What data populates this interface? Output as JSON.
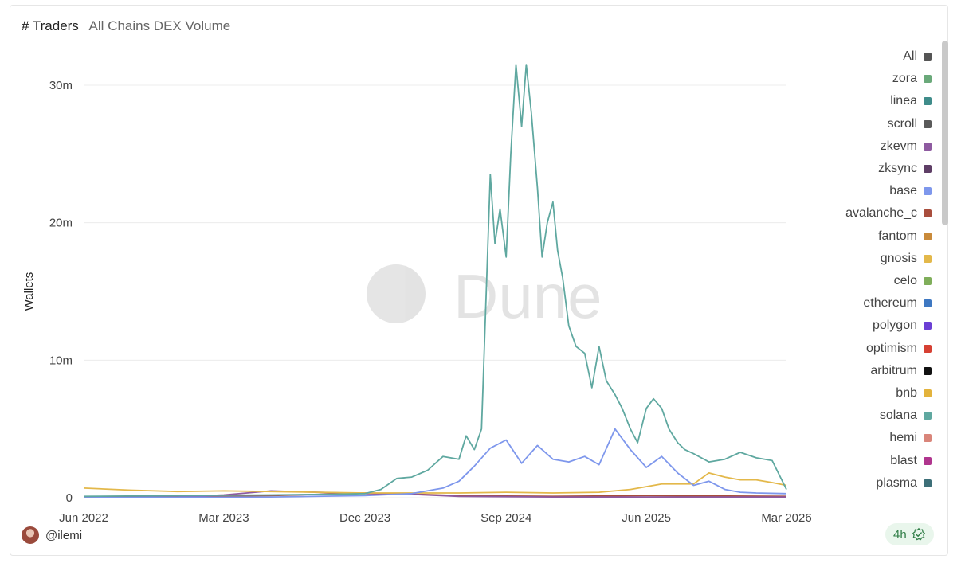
{
  "header": {
    "title": "# Traders",
    "subtitle": "All Chains DEX Volume"
  },
  "watermark": "Dune",
  "author": {
    "handle": "@ilemi"
  },
  "refresh_badge": {
    "label": "4h",
    "icon": "check-circle-icon"
  },
  "chart_data": {
    "type": "line",
    "title": "# Traders",
    "subtitle": "All Chains DEX Volume",
    "ylabel": "Wallets",
    "xlabel": "",
    "ylim": [
      0,
      30000000
    ],
    "yticks": [
      0,
      10000000,
      20000000,
      30000000
    ],
    "ytick_labels": [
      "0",
      "10m",
      "20m",
      "30m"
    ],
    "xlim": [
      "2022-06",
      "2026-03"
    ],
    "xticks": [
      "Jun 2022",
      "Mar 2023",
      "Dec 2023",
      "Sep 2024",
      "Jun 2025",
      "Mar 2026"
    ],
    "grid": "horizontal",
    "legend_position": "right",
    "legend": [
      {
        "name": "All",
        "color": "#555555"
      },
      {
        "name": "zora",
        "color": "#6aa97a"
      },
      {
        "name": "linea",
        "color": "#3f8c8a"
      },
      {
        "name": "scroll",
        "color": "#5a5a5a"
      },
      {
        "name": "zkevm",
        "color": "#8e5aa0"
      },
      {
        "name": "zksync",
        "color": "#5e3e66"
      },
      {
        "name": "base",
        "color": "#7e97ec"
      },
      {
        "name": "avalanche_c",
        "color": "#a94e3d"
      },
      {
        "name": "fantom",
        "color": "#c98a3a"
      },
      {
        "name": "gnosis",
        "color": "#e3b84a"
      },
      {
        "name": "celo",
        "color": "#7fae5a"
      },
      {
        "name": "ethereum",
        "color": "#3e78c2"
      },
      {
        "name": "polygon",
        "color": "#6b3fd4"
      },
      {
        "name": "optimism",
        "color": "#d64033"
      },
      {
        "name": "arbitrum",
        "color": "#111111"
      },
      {
        "name": "bnb",
        "color": "#e3b33c"
      },
      {
        "name": "solana",
        "color": "#5fa8a0"
      },
      {
        "name": "hemi",
        "color": "#d9857a"
      },
      {
        "name": "blast",
        "color": "#b0358e"
      },
      {
        "name": "plasma",
        "color": "#3d6f78"
      }
    ],
    "series": [
      {
        "name": "solana",
        "color": "#5fa8a0",
        "x": [
          "2022-06",
          "2022-12",
          "2023-06",
          "2023-10",
          "2023-12",
          "2024-01",
          "2024-02",
          "2024-03",
          "2024-04",
          "2024-05",
          "2024-06",
          "2024-06-15",
          "2024-07",
          "2024-07-15",
          "2024-08",
          "2024-08-10",
          "2024-08-20",
          "2024-09",
          "2024-09-10",
          "2024-09-20",
          "2024-10",
          "2024-10-10",
          "2024-10-20",
          "2024-11",
          "2024-11-10",
          "2024-11-20",
          "2024-12",
          "2024-12-10",
          "2024-12-20",
          "2025-01",
          "2025-01-15",
          "2025-02",
          "2025-02-15",
          "2025-03",
          "2025-03-15",
          "2025-04",
          "2025-04-15",
          "2025-05",
          "2025-05-15",
          "2025-06",
          "2025-06-15",
          "2025-07",
          "2025-07-15",
          "2025-08",
          "2025-08-15",
          "2025-09",
          "2025-10",
          "2025-11",
          "2025-12",
          "2026-01",
          "2026-02",
          "2026-03"
        ],
        "y": [
          100000,
          150000,
          200000,
          250000,
          300000,
          600000,
          1400000,
          1500000,
          2000000,
          3000000,
          2800000,
          4500000,
          3500000,
          5000000,
          23500000,
          18500000,
          21000000,
          17500000,
          25000000,
          31500000,
          27000000,
          31500000,
          28000000,
          22500000,
          17500000,
          20000000,
          21500000,
          18000000,
          16000000,
          12500000,
          11000000,
          10500000,
          8000000,
          11000000,
          8500000,
          7500000,
          6500000,
          5000000,
          4000000,
          6500000,
          7200000,
          6500000,
          5000000,
          4000000,
          3500000,
          3200000,
          2600000,
          2800000,
          3300000,
          2900000,
          2700000,
          600000
        ]
      },
      {
        "name": "base",
        "color": "#7e97ec",
        "x": [
          "2022-06",
          "2023-06",
          "2023-12",
          "2024-03",
          "2024-05",
          "2024-06",
          "2024-07",
          "2024-08",
          "2024-09",
          "2024-10",
          "2024-11",
          "2024-12",
          "2025-01",
          "2025-02",
          "2025-03",
          "2025-04",
          "2025-05",
          "2025-06",
          "2025-07",
          "2025-08",
          "2025-09",
          "2025-10",
          "2025-11",
          "2025-12",
          "2026-01",
          "2026-03"
        ],
        "y": [
          0,
          50000,
          150000,
          300000,
          700000,
          1200000,
          2300000,
          3600000,
          4200000,
          2500000,
          3800000,
          2800000,
          2600000,
          3000000,
          2400000,
          5000000,
          3500000,
          2200000,
          3000000,
          1800000,
          900000,
          1200000,
          600000,
          400000,
          350000,
          300000
        ]
      },
      {
        "name": "gnosis",
        "color": "#e3b84a",
        "x": [
          "2022-06",
          "2022-09",
          "2022-12",
          "2023-03",
          "2023-06",
          "2023-09",
          "2023-12",
          "2024-03",
          "2024-06",
          "2024-09",
          "2024-12",
          "2025-03",
          "2025-05",
          "2025-07",
          "2025-09",
          "2025-10",
          "2025-11",
          "2025-12",
          "2026-01",
          "2026-02",
          "2026-03"
        ],
        "y": [
          700000,
          550000,
          450000,
          500000,
          450000,
          400000,
          350000,
          350000,
          350000,
          400000,
          350000,
          400000,
          600000,
          1000000,
          1000000,
          1800000,
          1500000,
          1300000,
          1300000,
          1100000,
          900000
        ]
      },
      {
        "name": "zksync",
        "color": "#8e5aa0",
        "x": [
          "2022-06",
          "2022-12",
          "2023-03",
          "2023-06",
          "2023-09",
          "2023-12",
          "2024-03",
          "2024-06",
          "2024-12",
          "2025-06",
          "2026-03"
        ],
        "y": [
          0,
          50000,
          200000,
          500000,
          400000,
          300000,
          250000,
          100000,
          50000,
          50000,
          50000
        ]
      },
      {
        "name": "avalanche_c",
        "color": "#a94e3d",
        "x": [
          "2022-06",
          "2023-01",
          "2023-06",
          "2023-12",
          "2024-02",
          "2024-06",
          "2024-12",
          "2025-06",
          "2026-03"
        ],
        "y": [
          50000,
          100000,
          150000,
          350000,
          300000,
          150000,
          100000,
          150000,
          100000
        ]
      }
    ]
  }
}
